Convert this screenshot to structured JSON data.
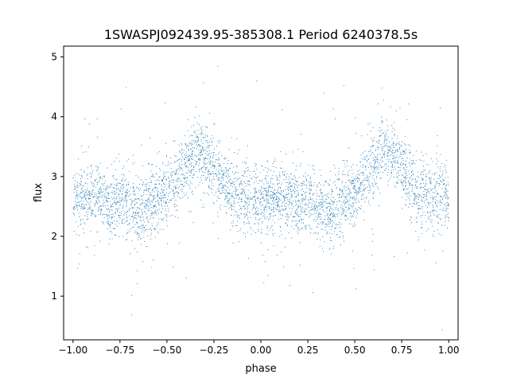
{
  "chart_data": {
    "type": "scatter",
    "title": "1SWASPJ092439.95-385308.1 Period 6240378.5s",
    "xlabel": "phase",
    "ylabel": "flux",
    "xlim": [
      -1.05,
      1.05
    ],
    "ylim": [
      0.27,
      5.18
    ],
    "xticks": [
      -1.0,
      -0.75,
      -0.5,
      -0.25,
      0.0,
      0.25,
      0.5,
      0.75,
      1.0
    ],
    "xtick_labels": [
      "−1.00",
      "−0.75",
      "−0.50",
      "−0.25",
      "0.00",
      "0.25",
      "0.50",
      "0.75",
      "1.00"
    ],
    "yticks": [
      1,
      2,
      3,
      4,
      5
    ],
    "ytick_labels": [
      "1",
      "2",
      "3",
      "4",
      "5"
    ],
    "grid": false,
    "series": [
      {
        "color": "#1f77b4",
        "marker_size": 1,
        "point_count": 4200,
        "note_structure": [
          {
            "phase_center": -0.9,
            "flux_center": 2.6,
            "flux_spread": 0.35
          },
          {
            "phase_center": -0.65,
            "flux_center": 2.45,
            "flux_spread": 0.3
          },
          {
            "phase_center": -0.4,
            "flux_center": 3.0,
            "flux_spread": 0.35
          },
          {
            "phase_center": -0.3,
            "flux_center": 3.35,
            "flux_spread": 0.3
          },
          {
            "phase_center": -0.05,
            "flux_center": 2.6,
            "flux_spread": 0.3
          },
          {
            "phase_center": 0.1,
            "flux_center": 2.6,
            "flux_spread": 0.3
          },
          {
            "phase_center": 0.35,
            "flux_center": 2.45,
            "flux_spread": 0.3
          },
          {
            "phase_center": 0.6,
            "flux_center": 3.0,
            "flux_spread": 0.35
          },
          {
            "phase_center": 0.7,
            "flux_center": 3.35,
            "flux_spread": 0.3
          },
          {
            "phase_center": 0.95,
            "flux_center": 2.6,
            "flux_spread": 0.3
          }
        ]
      }
    ]
  }
}
